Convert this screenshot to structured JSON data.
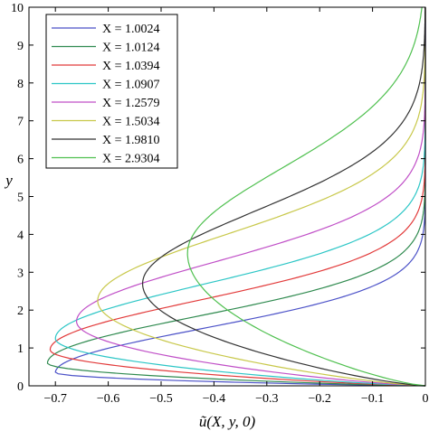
{
  "chart_data": {
    "type": "line",
    "xlabel": "ũ(X, y, 0)",
    "ylabel": "y",
    "xlim": [
      -0.75,
      0
    ],
    "ylim": [
      0,
      10
    ],
    "xticks": [
      -0.7,
      -0.6,
      -0.5,
      -0.4,
      -0.3,
      -0.2,
      -0.1,
      0
    ],
    "xtick_labels": [
      "−0.7",
      "−0.6",
      "−0.5",
      "−0.4",
      "−0.3",
      "−0.2",
      "−0.1",
      "0"
    ],
    "yticks": [
      0,
      1,
      2,
      3,
      4,
      5,
      6,
      7,
      8,
      9,
      10
    ],
    "ytick_labels": [
      "0",
      "1",
      "2",
      "3",
      "4",
      "5",
      "6",
      "7",
      "8",
      "9",
      "10"
    ],
    "grid": false,
    "legend_position": "top-left",
    "series": [
      {
        "name": "X = 1.0024",
        "color": "#4c52c8",
        "min": -0.7,
        "ymin": 0.35,
        "decay": 1.55
      },
      {
        "name": "X = 1.0124",
        "color": "#2f8a4f",
        "min": -0.715,
        "ymin": 0.6,
        "decay": 1.65
      },
      {
        "name": "X = 1.0394",
        "color": "#e23a3a",
        "min": -0.71,
        "ymin": 0.95,
        "decay": 1.75
      },
      {
        "name": "X = 1.0907",
        "color": "#2cc6c6",
        "min": -0.7,
        "ymin": 1.25,
        "decay": 1.9
      },
      {
        "name": "X = 1.2579",
        "color": "#c04fc7",
        "min": -0.66,
        "ymin": 1.7,
        "decay": 2.1
      },
      {
        "name": "X = 1.5034",
        "color": "#c8c84a",
        "min": -0.62,
        "ymin": 2.25,
        "decay": 2.35
      },
      {
        "name": "X = 1.9810",
        "color": "#333333",
        "min": -0.535,
        "ymin": 2.7,
        "decay": 2.55
      },
      {
        "name": "X = 2.9304",
        "color": "#4fc04f",
        "min": -0.45,
        "ymin": 3.5,
        "decay": 3.0
      }
    ]
  }
}
